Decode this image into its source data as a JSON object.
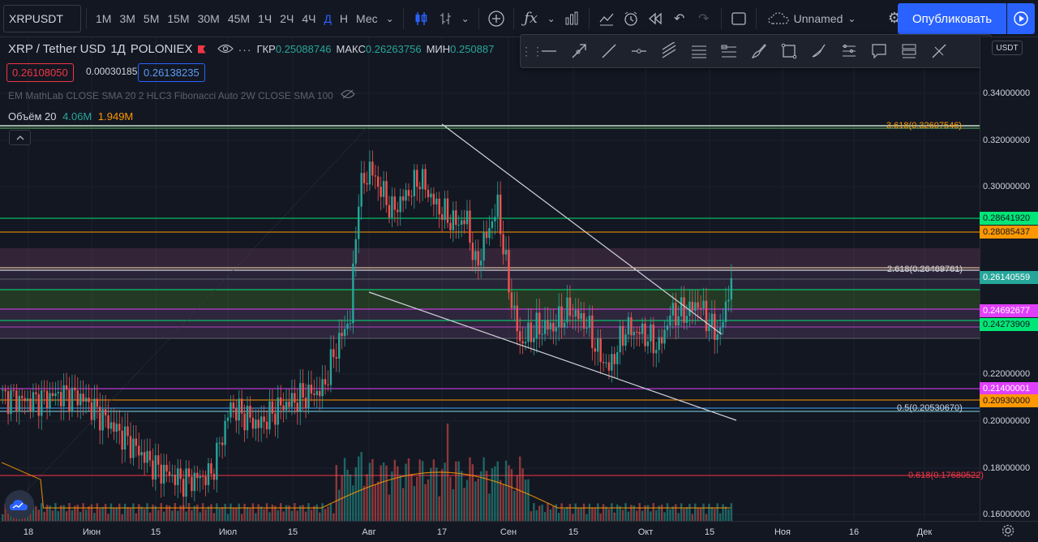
{
  "header": {
    "symbol": "XRPUSDT",
    "timeframes": [
      "1M",
      "3M",
      "5M",
      "15M",
      "30M",
      "45M",
      "1Ч",
      "2Ч",
      "4Ч",
      "Д",
      "Н",
      "Мес"
    ],
    "active_timeframe": "Д",
    "layout_name": "Unnamed",
    "publish_label": "Опубликовать"
  },
  "legend": {
    "title": "XRP / Tether USD",
    "interval": "1Д",
    "exchange": "POLONIEX",
    "open_label": "ГКР",
    "open_value": "0.25088746",
    "high_label": "МАКС",
    "high_value": "0.26263756",
    "low_label": "МИН",
    "low_value": "0.250887",
    "bid": "0.26108050",
    "spread": "0.00030185",
    "ask": "0.26138235",
    "indicators": "EM MathLab CLOSE SMA 20 2 HLC3 Fibonacci Auto 2W CLOSE SMA 100",
    "volume_label": "Объём 20",
    "volume_value": "4.06M",
    "volume_ma": "1.949M"
  },
  "price_axis": {
    "currency": "USDT",
    "ticks": [
      "0.34000000",
      "0.32000000",
      "0.30000000",
      "0.22000000",
      "0.20000000",
      "0.18000000",
      "0.16000000"
    ],
    "tags": [
      {
        "value": "0.28641920",
        "color": "#00e676"
      },
      {
        "value": "0.28085437",
        "color": "#ff9800"
      },
      {
        "value": "0.26140559",
        "color": "#26a69a"
      },
      {
        "value": "0.24692677",
        "color": "#e040fb"
      },
      {
        "value": "0.24273909",
        "color": "#00e676"
      },
      {
        "value": "0.21400001",
        "color": "#e040fb"
      },
      {
        "value": "0.20930000",
        "color": "#ff9800"
      }
    ]
  },
  "fib_labels": [
    {
      "text": "3.618(0.32607546)",
      "color": "#ff9800"
    },
    {
      "text": "2.618(0.26469761)",
      "color": "#d1d4dc"
    },
    {
      "text": "0.5(0.20530670)",
      "color": "#d1d4dc"
    },
    {
      "text": "0.618(0.17680522)",
      "color": "#f23645"
    }
  ],
  "time_axis": {
    "labels": [
      "18",
      "Июн",
      "15",
      "Июл",
      "15",
      "Авг",
      "17",
      "Сен",
      "15",
      "Окт",
      "15",
      "Ноя",
      "16",
      "Дек"
    ]
  },
  "colors": {
    "up": "#26a69a",
    "down": "#ef5350",
    "accent": "#2962ff",
    "background": "#131722"
  }
}
